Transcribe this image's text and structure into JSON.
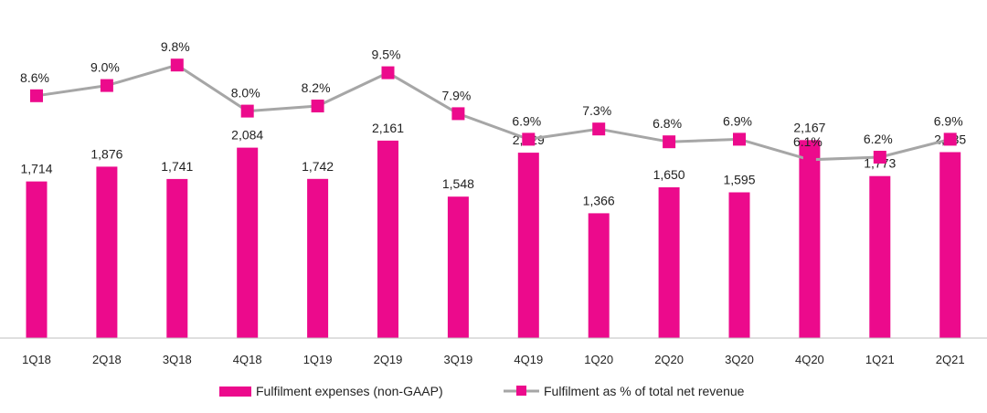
{
  "chart_data": {
    "type": "bar",
    "categories": [
      "1Q18",
      "2Q18",
      "3Q18",
      "4Q18",
      "1Q19",
      "2Q19",
      "3Q19",
      "4Q19",
      "1Q20",
      "2Q20",
      "3Q20",
      "4Q20",
      "1Q21",
      "2Q21"
    ],
    "series": [
      {
        "name": "Fulfilment expenses (non-GAAP)",
        "type": "bar",
        "values": [
          1714,
          1876,
          1741,
          2084,
          1742,
          2161,
          1548,
          2029,
          1366,
          1650,
          1595,
          2167,
          1773,
          2035
        ],
        "labels": [
          "1,714",
          "1,876",
          "1,741",
          "2,084",
          "1,742",
          "2,161",
          "1,548",
          "2,029",
          "1,366",
          "1,650",
          "1,595",
          "2,167",
          "1,773",
          "2,035"
        ]
      },
      {
        "name": "Fulfilment as % of total net revenue",
        "type": "line",
        "values": [
          8.6,
          9.0,
          9.8,
          8.0,
          8.2,
          9.5,
          7.9,
          6.9,
          7.3,
          6.8,
          6.9,
          6.1,
          6.2,
          6.9
        ],
        "labels": [
          "8.6%",
          "9.0%",
          "9.8%",
          "8.0%",
          "8.2%",
          "9.5%",
          "7.9%",
          "6.9%",
          "7.3%",
          "6.8%",
          "6.9%",
          "6.1%",
          "6.2%",
          "6.9%"
        ]
      }
    ],
    "title": "",
    "xlabel": "",
    "ylabel": "",
    "bar_ylim": [
      0,
      2300
    ],
    "line_ylim": [
      5.2,
      10.2
    ],
    "legend_position": "bottom",
    "grid": false
  },
  "colors": {
    "bar": "#ec0a8c",
    "line": "#a6a6a6",
    "marker": "#ec0a8c",
    "axis": "#bfbfbf"
  }
}
